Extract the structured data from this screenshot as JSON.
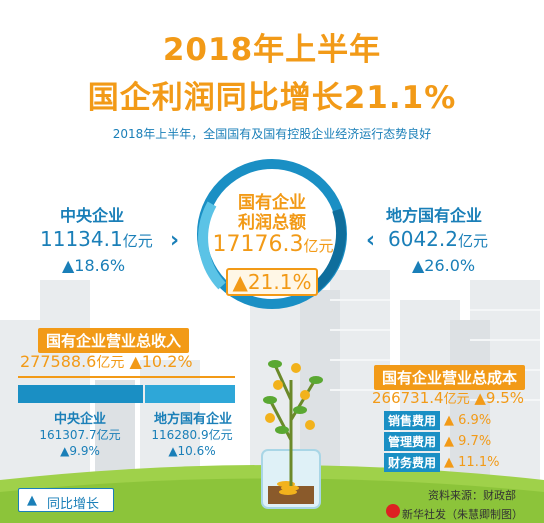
{
  "title": {
    "line1": "2018年上半年",
    "line2": "国企利润同比增长21.1%"
  },
  "subtitle": "2018年上半年，全国国有及国有控股企业经济运行态势良好",
  "central_enterprise": {
    "name": "中央企业",
    "value": "11134.1",
    "unit": "亿元",
    "growth": "▲18.6%"
  },
  "local_enterprise": {
    "name": "地方国有企业",
    "value": "6042.2",
    "unit": "亿元",
    "growth": "▲26.0%"
  },
  "profit_total": {
    "title_line1": "国有企业",
    "title_line2": "利润总额",
    "value": "17176.3",
    "unit": "亿元",
    "growth": "▲21.1%"
  },
  "revenue": {
    "title": "国有企业营业总收入",
    "value": "277588.6",
    "unit": "亿元",
    "growth": "▲10.2%",
    "central": {
      "name": "中央企业",
      "value": "161307.7亿元",
      "growth": "▲9.9%"
    },
    "local": {
      "name": "地方国有企业",
      "value": "116280.9亿元",
      "growth": "▲10.6%"
    }
  },
  "cost": {
    "title": "国有企业营业总成本",
    "value": "266731.4",
    "unit": "亿元",
    "growth": "▲9.5%",
    "fees": [
      {
        "label": "销售费用",
        "growth": "▲ 6.9%"
      },
      {
        "label": "管理费用",
        "growth": "▲ 9.7%"
      },
      {
        "label": "财务费用",
        "growth": "▲ 11.1%"
      }
    ]
  },
  "legend": {
    "icon": "▲",
    "text": "同比增长"
  },
  "source": "资料来源：财政部",
  "credit": "新华社发（朱慧卿制图）",
  "colors": {
    "orange": "#f29a17",
    "blue": "#1a7fb8",
    "light_blue": "#2ea7d8"
  }
}
